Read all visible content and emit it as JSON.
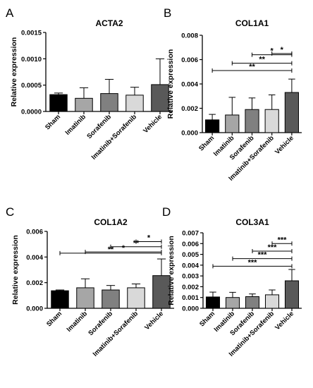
{
  "chart_data": [
    {
      "panel": "A",
      "type": "bar",
      "title": "ACTA2",
      "ylabel": "Relative expression",
      "ylim": [
        0,
        0.0015
      ],
      "yticks": [
        "0.0000",
        "0.0005",
        "0.0010",
        "0.0015"
      ],
      "ytick_values": [
        0,
        0.0005,
        0.001,
        0.0015
      ],
      "categories": [
        "Sham",
        "Imatinib",
        "Sorafenib",
        "Imatinib+Sorafenib",
        "Vehicle"
      ],
      "values": [
        0.00032,
        0.00025,
        0.00034,
        0.00031,
        0.00051
      ],
      "errors": [
        3e-05,
        0.0002,
        0.00027,
        0.00015,
        0.00049
      ],
      "significance": []
    },
    {
      "panel": "B",
      "type": "bar",
      "title": "COL1A1",
      "ylabel": "Relative expression",
      "ylim": [
        0,
        0.008
      ],
      "yticks": [
        "0.000",
        "0.002",
        "0.004",
        "0.006",
        "0.008"
      ],
      "ytick_values": [
        0,
        0.002,
        0.004,
        0.006,
        0.008
      ],
      "categories": [
        "Sham",
        "Imatinib",
        "Sorafenib",
        "Imatinib+Sorafenib",
        "Vehicle"
      ],
      "values": [
        0.00105,
        0.00145,
        0.0019,
        0.0019,
        0.0033
      ],
      "errors": [
        0.00045,
        0.00145,
        0.00095,
        0.0012,
        0.0011
      ],
      "significance": [
        {
          "from": 3,
          "to": 4,
          "y": 0.0065,
          "label": "*"
        },
        {
          "from": 2,
          "to": 4,
          "y": 0.0064,
          "label": "*"
        },
        {
          "from": 1,
          "to": 4,
          "y": 0.0057,
          "label": "**"
        },
        {
          "from": 0,
          "to": 4,
          "y": 0.0051,
          "label": "**"
        }
      ]
    },
    {
      "panel": "C",
      "type": "bar",
      "title": "COL1A2",
      "ylabel": "Relative expression",
      "ylim": [
        0,
        0.006
      ],
      "yticks": [
        "0.000",
        "0.002",
        "0.004",
        "0.006"
      ],
      "ytick_values": [
        0,
        0.002,
        0.004,
        0.006
      ],
      "categories": [
        "Sham",
        "Imatinib",
        "Sorafenib",
        "Imatinib+Sorafenib",
        "Vehicle"
      ],
      "values": [
        0.00137,
        0.0016,
        0.00143,
        0.0016,
        0.00255
      ],
      "errors": [
        6e-05,
        0.0007,
        0.00035,
        0.0003,
        0.0013
      ],
      "significance": [
        {
          "from": 3,
          "to": 4,
          "y": 0.0052,
          "label": "*"
        },
        {
          "from": 2,
          "to": 4,
          "y": 0.0048,
          "label": "**"
        },
        {
          "from": 1,
          "to": 4,
          "y": 0.0044,
          "label": "*"
        },
        {
          "from": 0,
          "to": 4,
          "y": 0.0043,
          "label": "**"
        }
      ]
    },
    {
      "panel": "D",
      "type": "bar",
      "title": "COL3A1",
      "ylabel": "Relative expression",
      "ylim": [
        0,
        0.007
      ],
      "yticks": [
        "0.000",
        "0.001",
        "0.002",
        "0.003",
        "0.004",
        "0.005",
        "0.006",
        "0.007"
      ],
      "ytick_values": [
        0,
        0.001,
        0.002,
        0.003,
        0.004,
        0.005,
        0.006,
        0.007
      ],
      "categories": [
        "Sham",
        "Imatinib",
        "Sorafenib",
        "Imatinib+Sorafenib",
        "Vehicle"
      ],
      "values": [
        0.00105,
        0.001,
        0.00108,
        0.00125,
        0.00255
      ],
      "errors": [
        0.00045,
        0.00048,
        0.00025,
        0.00045,
        0.00105
      ],
      "significance": [
        {
          "from": 3,
          "to": 4,
          "y": 0.006,
          "label": "***"
        },
        {
          "from": 2,
          "to": 4,
          "y": 0.0053,
          "label": "***"
        },
        {
          "from": 1,
          "to": 4,
          "y": 0.0046,
          "label": "***"
        },
        {
          "from": 0,
          "to": 4,
          "y": 0.0039,
          "label": "***"
        }
      ]
    }
  ],
  "bar_colors": [
    "#000000",
    "#a6a6a6",
    "#808080",
    "#d9d9d9",
    "#595959"
  ]
}
